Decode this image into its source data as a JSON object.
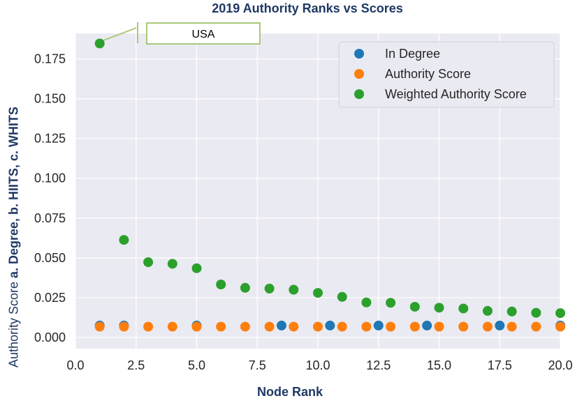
{
  "chart_data": {
    "type": "scatter",
    "title": "2019 Authority Ranks vs Scores",
    "xlabel": "Node Rank",
    "ylabel_prefix": "Authority Score ",
    "ylabel_bold": "a. Degree, b. HIITS, c. WHITS",
    "xlim": [
      0,
      20
    ],
    "ylim": [
      -0.007,
      0.191
    ],
    "x_ticks": [
      "0.0",
      "2.5",
      "5.0",
      "7.5",
      "10.0",
      "12.5",
      "15.0",
      "17.5",
      "20.0"
    ],
    "y_ticks": [
      "0.000",
      "0.025",
      "0.050",
      "0.075",
      "0.100",
      "0.125",
      "0.150",
      "0.175"
    ],
    "grid": true,
    "legend_position": "top-right",
    "annotation": {
      "text": "USA"
    },
    "series": [
      {
        "name": "In Degree",
        "color": "#1f77b4",
        "x": [
          1,
          2,
          5,
          8.5,
          10.5,
          12.5,
          14.5,
          17.5,
          20
        ],
        "y": [
          0.0075,
          0.0075,
          0.0075,
          0.0075,
          0.0075,
          0.0075,
          0.0075,
          0.0075,
          0.0075
        ]
      },
      {
        "name": "Authority Score",
        "color": "#ff7f0e",
        "x": [
          1,
          2,
          3,
          4,
          5,
          6,
          7,
          8,
          9,
          10,
          11,
          12,
          13,
          14,
          15,
          16,
          17,
          18,
          19,
          20
        ],
        "y": [
          0.0068,
          0.0068,
          0.0068,
          0.0068,
          0.0068,
          0.0068,
          0.0068,
          0.0068,
          0.0068,
          0.0068,
          0.0068,
          0.0068,
          0.0068,
          0.0068,
          0.0068,
          0.0068,
          0.0068,
          0.0068,
          0.0068,
          0.0068
        ]
      },
      {
        "name": "Weighted Authority Score",
        "color": "#2ca02c",
        "x": [
          1,
          2,
          3,
          4,
          5,
          6,
          7,
          8,
          9,
          10,
          11,
          12,
          13,
          14,
          15,
          16,
          17,
          18,
          19,
          20
        ],
        "y": [
          0.1847,
          0.0613,
          0.0473,
          0.0463,
          0.0435,
          0.0333,
          0.0312,
          0.0307,
          0.03,
          0.028,
          0.0255,
          0.022,
          0.0218,
          0.0193,
          0.0187,
          0.0182,
          0.0167,
          0.0163,
          0.0155,
          0.0153
        ]
      }
    ]
  }
}
